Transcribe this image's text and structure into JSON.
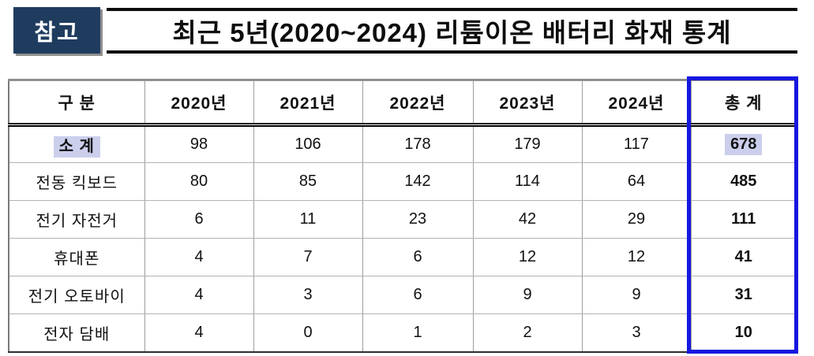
{
  "page": {
    "badge": "참고",
    "title": "최근 5년(2020~2024) 리튬이온 배터리 화재 통계"
  },
  "colors": {
    "badge_bg": "#1F3C5F",
    "highlight": "#CBCFEC",
    "total_box_border": "#1717E0",
    "grid_line": "#9E9E9E",
    "outer_border": "#8F8F8F"
  },
  "table": {
    "columns": [
      "구 분",
      "2020년",
      "2021년",
      "2022년",
      "2023년",
      "2024년",
      "총 계"
    ],
    "rows": [
      {
        "label": "소 계",
        "values": [
          "98",
          "106",
          "178",
          "179",
          "117"
        ],
        "total": "678"
      },
      {
        "label": "전동 킥보드",
        "values": [
          "80",
          "85",
          "142",
          "114",
          "64"
        ],
        "total": "485"
      },
      {
        "label": "전기 자전거",
        "values": [
          "6",
          "11",
          "23",
          "42",
          "29"
        ],
        "total": "111"
      },
      {
        "label": "휴대폰",
        "values": [
          "4",
          "7",
          "6",
          "12",
          "12"
        ],
        "total": "41"
      },
      {
        "label": "전기 오토바이",
        "values": [
          "4",
          "3",
          "6",
          "9",
          "9"
        ],
        "total": "31"
      },
      {
        "label": "전자 담배",
        "values": [
          "4",
          "0",
          "1",
          "2",
          "3"
        ],
        "total": "10"
      }
    ]
  }
}
